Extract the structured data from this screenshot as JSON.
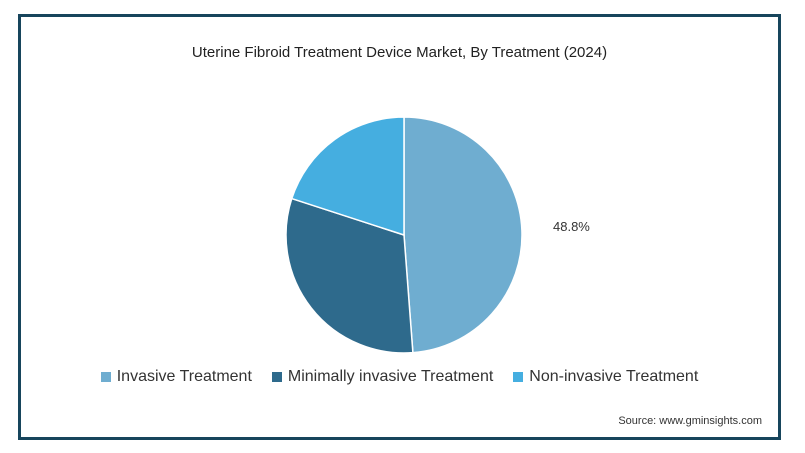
{
  "chart_data": {
    "type": "pie",
    "title": "Uterine Fibroid Treatment Device Market, By Treatment (2024)",
    "labels": [
      "Invasive Treatment",
      "Minimally invasive Treatment",
      "Non-invasive Treatment"
    ],
    "values": [
      48.8,
      31.2,
      20.0
    ],
    "colors": [
      "#6fadd0",
      "#2e6a8c",
      "#45aee0"
    ],
    "data_labels": [
      "48.8%",
      "",
      ""
    ],
    "legend_position": "bottom",
    "source": "Source: www.gminsights.com"
  }
}
